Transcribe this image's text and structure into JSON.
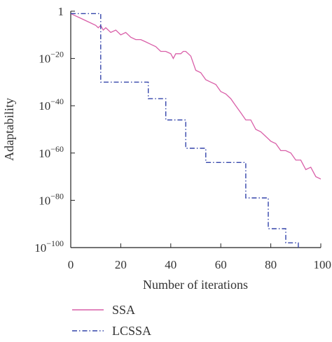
{
  "chart_data": {
    "type": "line",
    "xlabel": "Number of iterations",
    "ylabel": "Adaptability",
    "xlim": [
      0,
      100
    ],
    "ylim_log10": [
      -100,
      0
    ],
    "y_scale": "log",
    "grid": false,
    "legend_position": "bottom",
    "x_ticks": [
      "0",
      "20",
      "40",
      "60",
      "80",
      "100"
    ],
    "y_ticks": [
      {
        "base": "1",
        "exp": ""
      },
      {
        "base": "10",
        "exp": "−20"
      },
      {
        "base": "10",
        "exp": "−40"
      },
      {
        "base": "10",
        "exp": "−60"
      },
      {
        "base": "10",
        "exp": "−80"
      },
      {
        "base": "10",
        "exp": "−100"
      }
    ],
    "series": [
      {
        "name": "SSA",
        "color": "#d95fa8",
        "dash": "solid",
        "x": [
          0,
          2,
          4,
          6,
          8,
          10,
          11,
          12,
          13,
          14,
          16,
          18,
          20,
          22,
          24,
          26,
          28,
          30,
          32,
          34,
          36,
          38,
          40,
          41,
          42,
          44,
          45,
          46,
          47,
          48,
          50,
          52,
          54,
          56,
          58,
          60,
          62,
          64,
          66,
          68,
          70,
          72,
          74,
          76,
          78,
          80,
          82,
          84,
          86,
          88,
          90,
          92,
          94,
          96,
          98,
          100
        ],
        "log10_y": [
          -1,
          -2,
          -3,
          -4,
          -5,
          -6,
          -7,
          -6,
          -8,
          -7,
          -9,
          -8,
          -10,
          -9,
          -11,
          -12,
          -12,
          -13,
          -14,
          -15,
          -17,
          -17,
          -18,
          -20,
          -18,
          -18,
          -17,
          -17,
          -18,
          -19,
          -25,
          -26,
          -29,
          -30,
          -31,
          -34,
          -35,
          -37,
          -40,
          -43,
          -46,
          -46,
          -50,
          -51,
          -53,
          -55,
          -56,
          -59,
          -59,
          -60,
          -63,
          -63,
          -67,
          -66,
          -70,
          -71
        ]
      },
      {
        "name": "LCSSA",
        "color": "#3344aa",
        "dash": "dashdot",
        "x": [
          0,
          12,
          12,
          31,
          31,
          38,
          38,
          46,
          46,
          54,
          54,
          70,
          70,
          79,
          79,
          86,
          86,
          91,
          91,
          93,
          93,
          96,
          100
        ],
        "log10_y": [
          -1,
          -1,
          -30,
          -30,
          -37,
          -37,
          -46,
          -46,
          -58,
          -58,
          -64,
          -64,
          -79,
          -79,
          -92,
          -92,
          -98,
          -98,
          -105,
          -105,
          -108,
          -108,
          -113
        ]
      }
    ]
  }
}
